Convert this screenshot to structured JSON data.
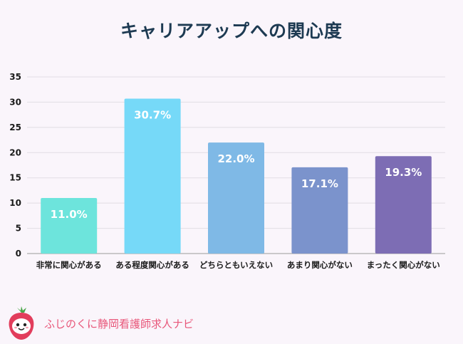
{
  "title": "キャリアアップへの関心度",
  "brand": "ふじのくに静岡看護師求人ナビ",
  "chart_data": {
    "type": "bar",
    "title": "キャリアアップへの関心度",
    "categories": [
      "非常に関心がある",
      "ある程度関心がある",
      "どちらともいえない",
      "あまり関心がない",
      "まったく関心がない"
    ],
    "values": [
      11.0,
      30.7,
      22.0,
      17.1,
      19.3
    ],
    "data_labels": [
      "11.0%",
      "30.7%",
      "22.0%",
      "17.1%",
      "19.3%"
    ],
    "colors": [
      "#6de4dc",
      "#76d9f8",
      "#7fb9e6",
      "#7b93cc",
      "#7d6db4"
    ],
    "yticks": [
      "0",
      "5",
      "10",
      "15",
      "20",
      "25",
      "30",
      "35"
    ],
    "ylim": [
      0,
      35
    ],
    "grid": true,
    "xlabel": "",
    "ylabel": ""
  }
}
